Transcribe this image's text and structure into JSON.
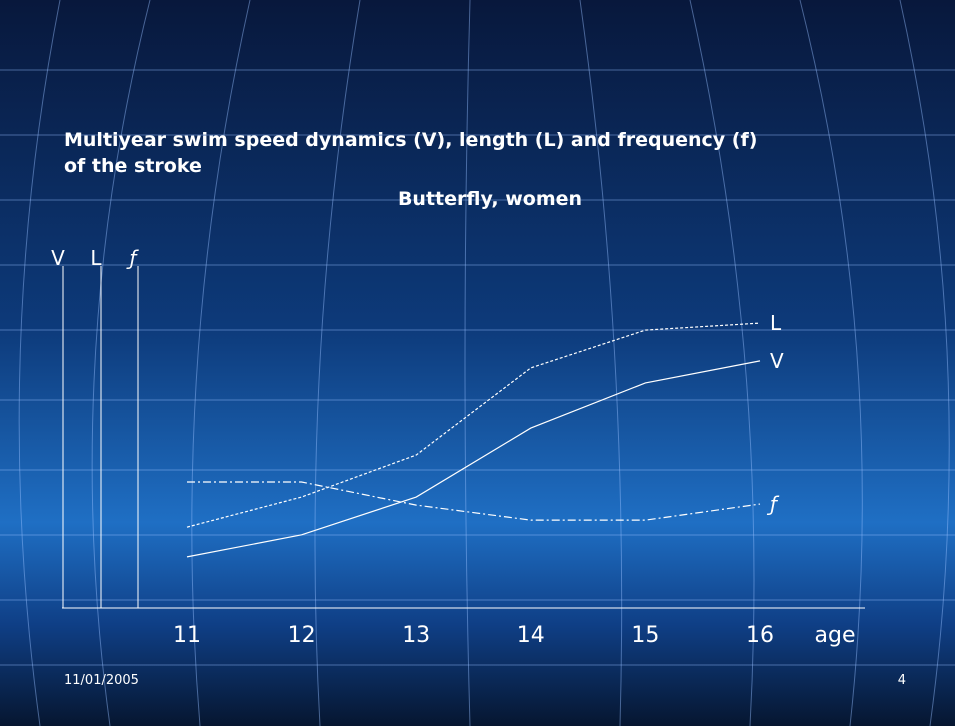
{
  "chart_data": {
    "type": "line",
    "title": "Multiyear swim speed dynamics (V), length (L) and frequency (f) of the stroke",
    "subtitle": "Butterfly, women",
    "x_label": "age",
    "categories": [
      "11",
      "12",
      "13",
      "14",
      "15",
      "16"
    ],
    "ylim": [
      0,
      100
    ],
    "series": [
      {
        "name": "V",
        "color": "#ffffff",
        "style": "solid",
        "values": [
          14.6,
          20.9,
          31.7,
          51.4,
          64.3,
          70.6
        ]
      },
      {
        "name": "L",
        "color": "#ffffff",
        "style": "dashed",
        "values": [
          23.1,
          31.7,
          43.7,
          68.6,
          79.4,
          81.4
        ]
      },
      {
        "name": "ƒ",
        "color": "#ffffff",
        "style": "dashdot",
        "values": [
          36,
          36,
          29.4,
          25.1,
          25.1,
          29.7
        ]
      }
    ]
  },
  "footer": {
    "date": "11/01/2005",
    "page": "4"
  }
}
